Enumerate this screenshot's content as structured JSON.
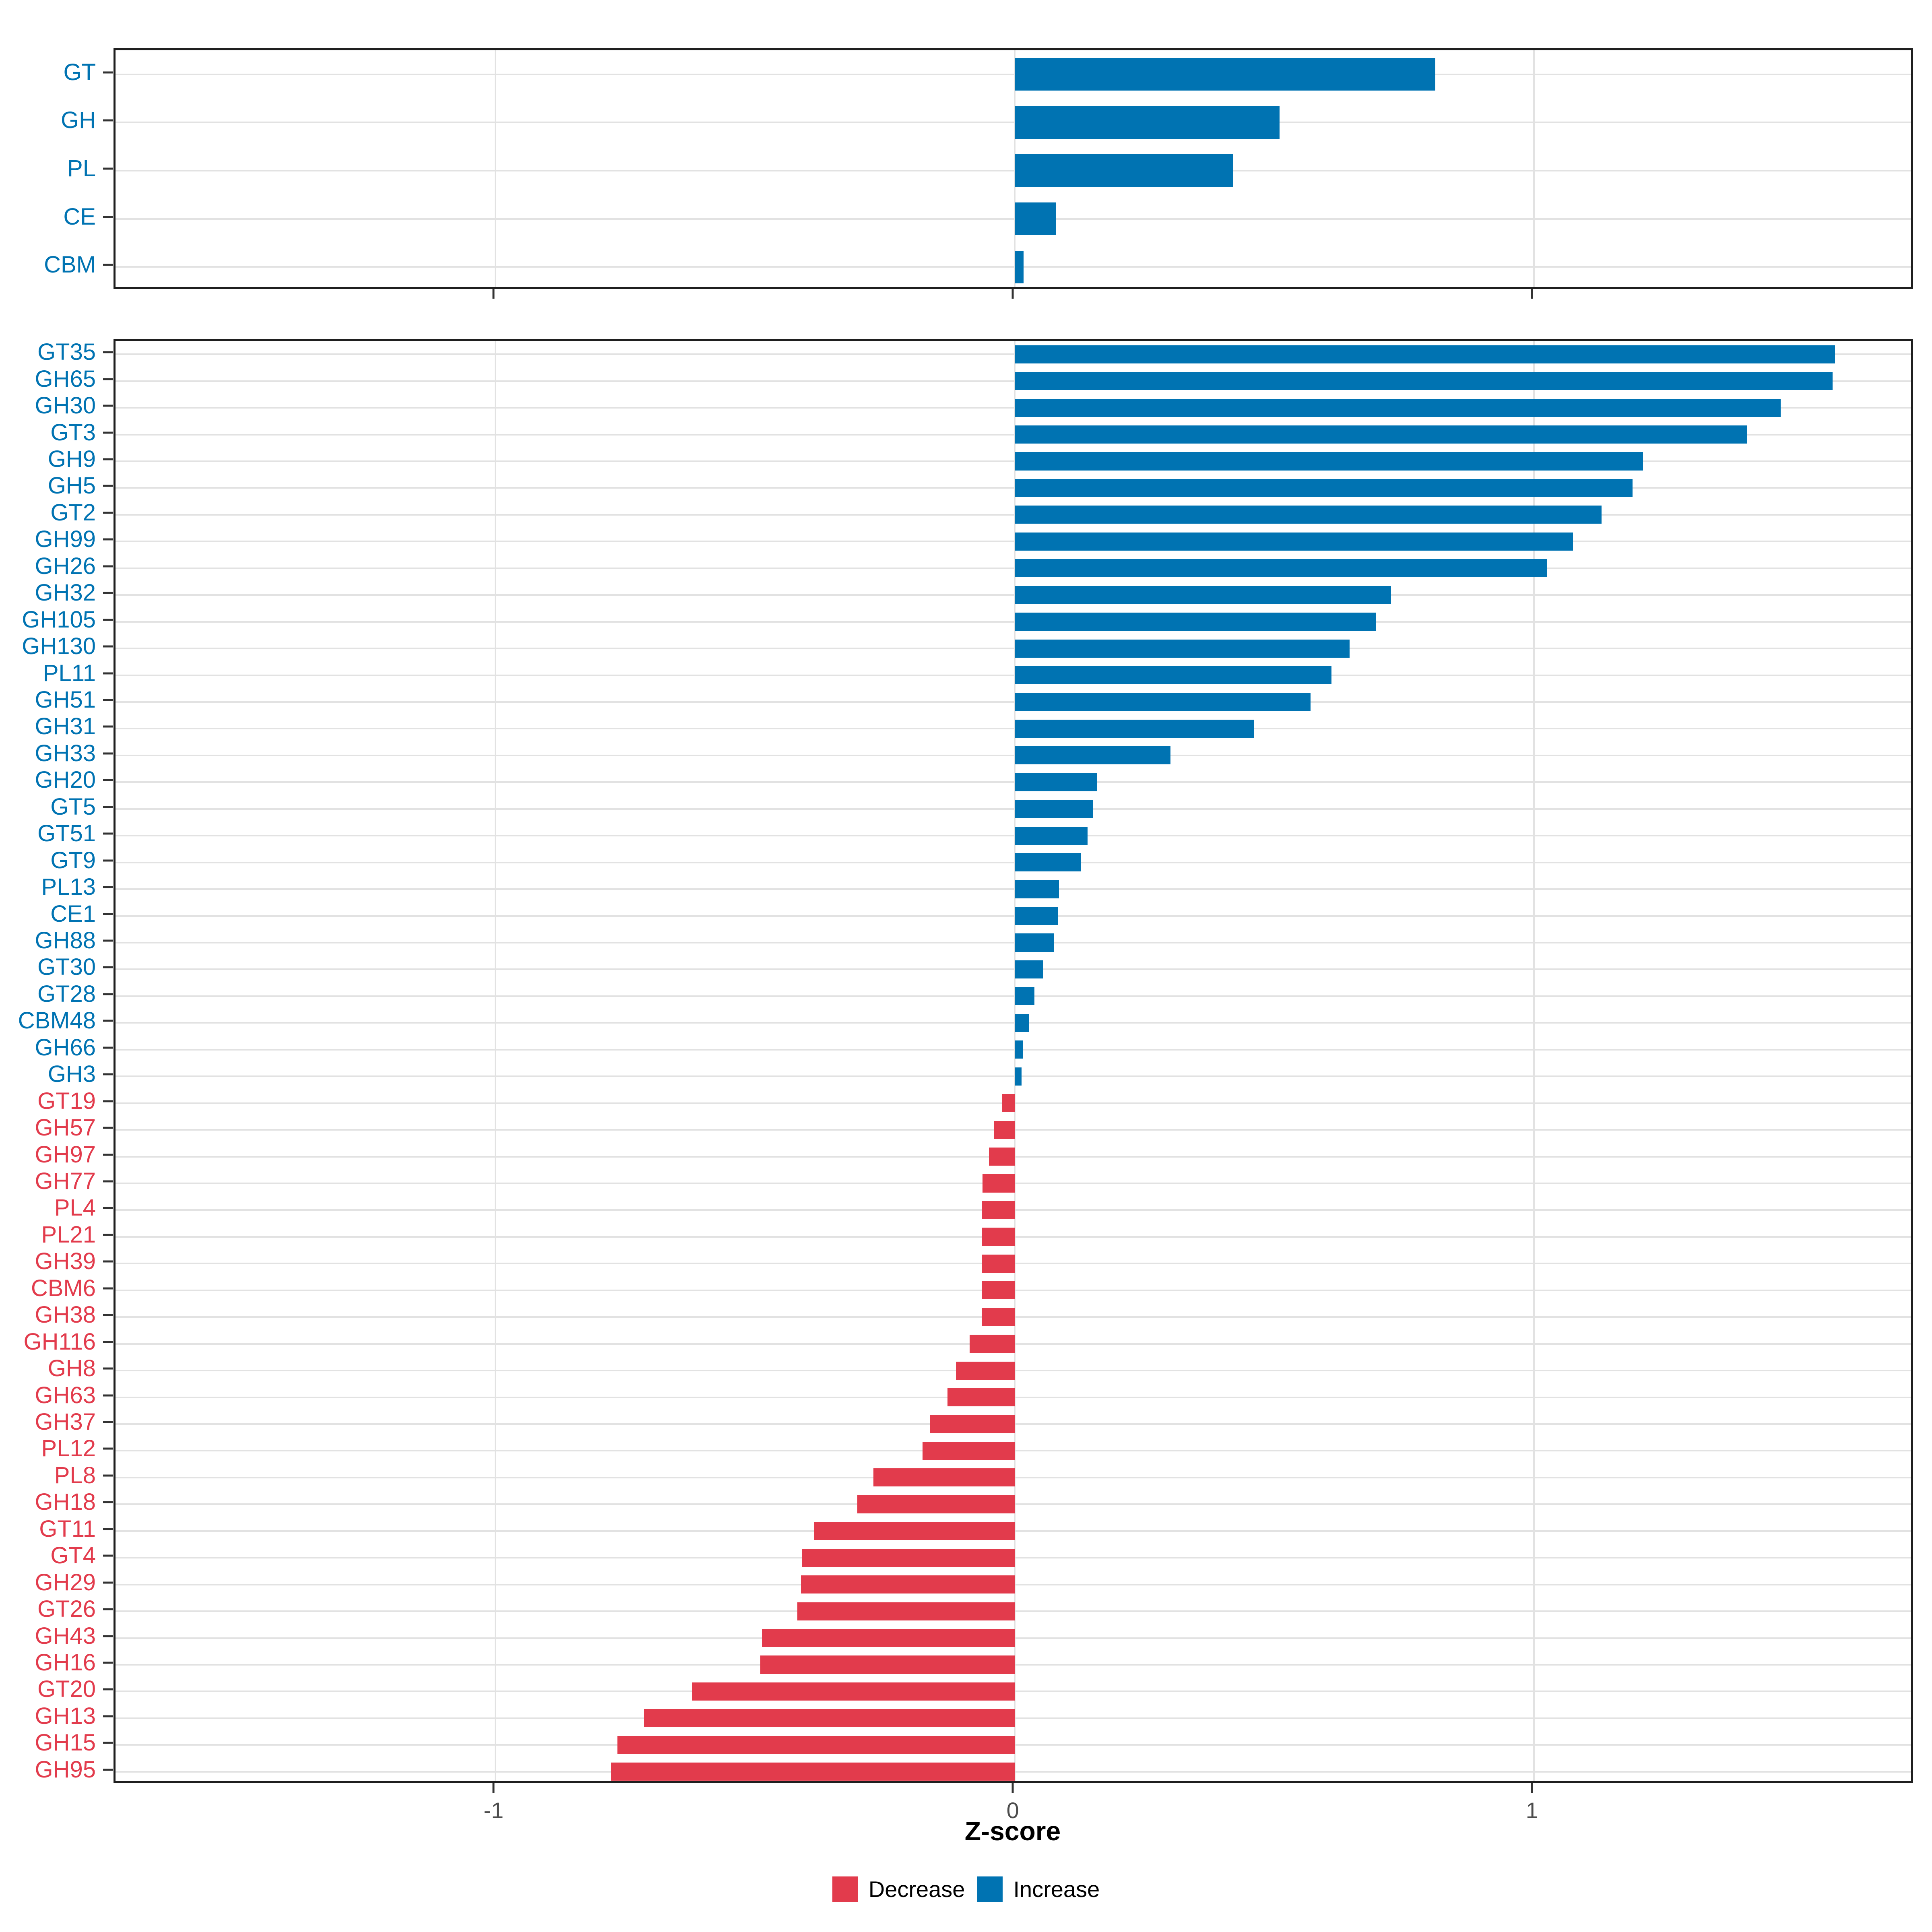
{
  "chart_data": [
    {
      "type": "bar",
      "orientation": "horizontal",
      "panel": "cazyme-classes",
      "categories": [
        "GT",
        "GH",
        "PL",
        "CE",
        "CBM"
      ],
      "values": [
        0.81,
        0.51,
        0.42,
        0.079,
        0.017
      ],
      "xlim": [
        -1.732,
        1.734
      ],
      "xticks": [
        -1,
        0,
        1
      ],
      "grid": true,
      "tick_labels_shown": false
    },
    {
      "type": "bar",
      "orientation": "horizontal",
      "panel": "cazyme-families",
      "categories": [
        "GT35",
        "GH65",
        "GH30",
        "GT3",
        "GH9",
        "GH5",
        "GT2",
        "GH99",
        "GH26",
        "GH32",
        "GH105",
        "GH130",
        "PL11",
        "GH51",
        "GH31",
        "GH33",
        "GH20",
        "GT5",
        "GT51",
        "GT9",
        "PL13",
        "CE1",
        "GH88",
        "GT30",
        "GT28",
        "CBM48",
        "GH66",
        "GH3",
        "GT19",
        "GH57",
        "GH97",
        "GH77",
        "PL4",
        "PL21",
        "GH39",
        "CBM6",
        "GH38",
        "GH116",
        "GH8",
        "GH63",
        "GH37",
        "PL12",
        "PL8",
        "GH18",
        "GT11",
        "GT4",
        "GH29",
        "GT26",
        "GH43",
        "GH16",
        "GT20",
        "GH13",
        "GH15",
        "GH95"
      ],
      "values": [
        1.58,
        1.575,
        1.475,
        1.41,
        1.21,
        1.19,
        1.13,
        1.075,
        1.025,
        0.725,
        0.695,
        0.645,
        0.61,
        0.57,
        0.46,
        0.3,
        0.158,
        0.15,
        0.14,
        0.128,
        0.085,
        0.083,
        0.076,
        0.054,
        0.038,
        0.028,
        0.015,
        0.013,
        -0.024,
        -0.04,
        -0.05,
        -0.062,
        -0.063,
        -0.063,
        -0.063,
        -0.064,
        -0.064,
        -0.087,
        -0.113,
        -0.13,
        -0.164,
        -0.178,
        -0.272,
        -0.303,
        -0.386,
        -0.41,
        -0.412,
        -0.419,
        -0.487,
        -0.49,
        -0.622,
        -0.714,
        -0.765,
        -0.778
      ],
      "xlim": [
        -1.732,
        1.734
      ],
      "xticks": [
        -1,
        0,
        1
      ],
      "grid": true,
      "tick_labels_shown": true,
      "xlabel": "Z-score"
    }
  ],
  "axis": {
    "xlabel": "Z-score",
    "tick_labels": [
      "-1",
      "0",
      "1"
    ]
  },
  "legend": {
    "position": "bottom-center",
    "items": [
      {
        "label": "Decrease",
        "color": "#E23B4C"
      },
      {
        "label": "Increase",
        "color": "#0073B2"
      }
    ]
  },
  "colors": {
    "increase": "#0073B2",
    "decrease": "#E23B4C",
    "gridline": "#E2E2E2",
    "panel_border": "#1F1F1F",
    "tick_mark": "#333333",
    "tick_label": "#4D4D4D"
  }
}
